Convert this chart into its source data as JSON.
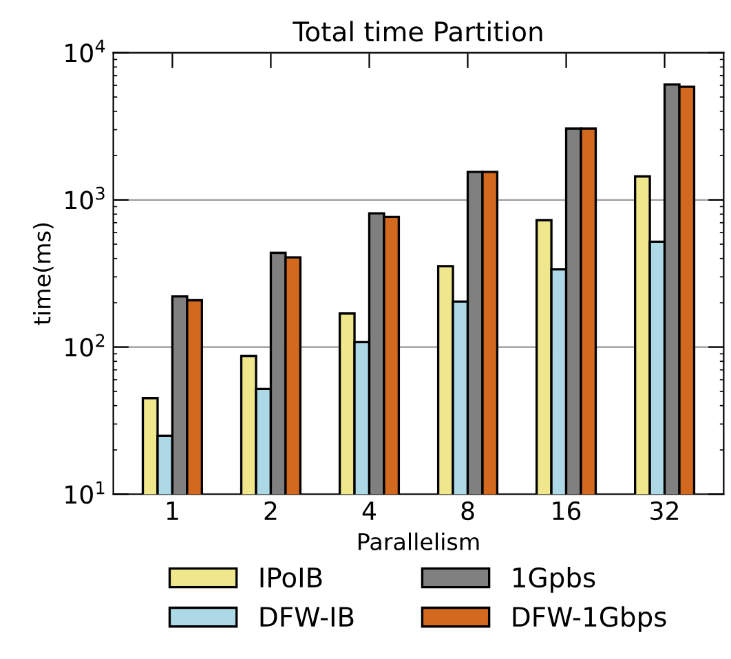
{
  "chart_data": {
    "type": "bar",
    "title": "Total time Partition",
    "xlabel": "Parallelism",
    "ylabel": "time(ms)",
    "categories": [
      "1",
      "2",
      "4",
      "8",
      "16",
      "32"
    ],
    "series": [
      {
        "name": "IPoIB",
        "color": "#f0e68c",
        "values": [
          45,
          87,
          169,
          355,
          729,
          1443
        ]
      },
      {
        "name": "DFW-IB",
        "color": "#add8e6",
        "values": [
          25,
          52,
          108,
          204,
          337,
          520
        ]
      },
      {
        "name": "1Gpbs",
        "color": "#808080",
        "values": [
          221,
          437,
          811,
          1550,
          3050,
          6080
        ]
      },
      {
        "name": "DFW-1Gbps",
        "color": "#d2691e",
        "values": [
          208,
          407,
          766,
          1550,
          3050,
          5870
        ]
      }
    ],
    "log": "y",
    "ylim": [
      10,
      10000
    ],
    "yticks": [
      {
        "value": 10,
        "label": "10$^{1}$"
      },
      {
        "value": 100,
        "label": "10$^{2}$"
      },
      {
        "value": 1000,
        "label": "10$^{3}$"
      },
      {
        "value": 10000,
        "label": "10$^{4}$"
      }
    ],
    "grid": "y",
    "legend": "bottom"
  }
}
